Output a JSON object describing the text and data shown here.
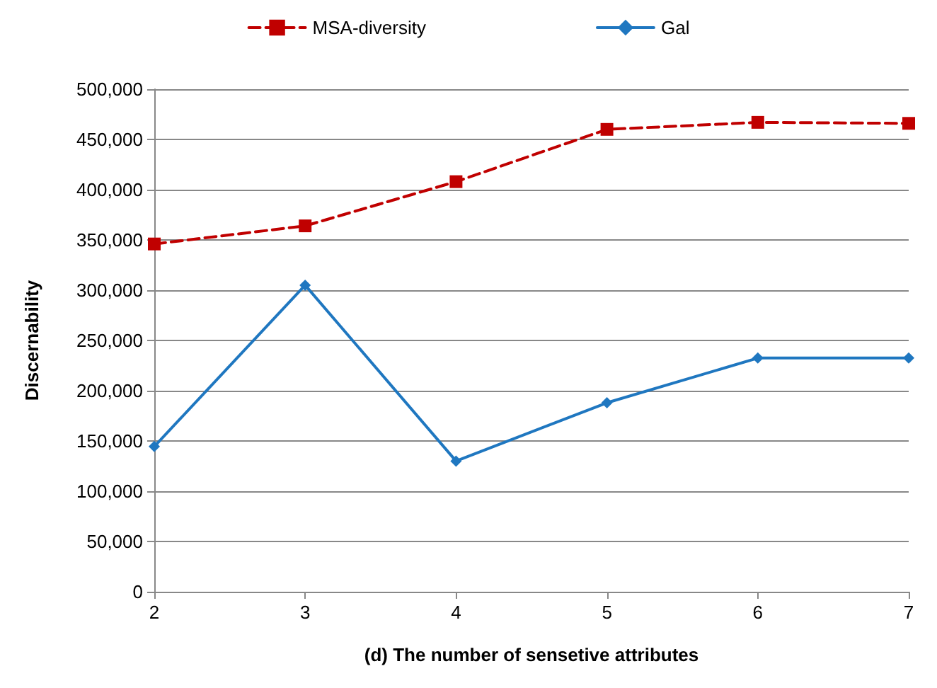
{
  "chart_data": {
    "type": "line",
    "xlabel": "(d) The number of sensetive attributes",
    "ylabel": "Discernability",
    "x": [
      2,
      3,
      4,
      5,
      6,
      7
    ],
    "series": [
      {
        "name": "MSA-diversity",
        "color": "#c00000",
        "marker": "square",
        "line_style": "dashed",
        "values": [
          346000,
          364000,
          408000,
          460000,
          467000,
          466000
        ]
      },
      {
        "name": "Gal",
        "color": "#1f77c0",
        "marker": "diamond",
        "line_style": "solid",
        "values": [
          144500,
          305000,
          130000,
          188000,
          232500,
          232500
        ]
      }
    ],
    "xlim": [
      2,
      7
    ],
    "xticks": [
      2,
      3,
      4,
      5,
      6,
      7
    ],
    "ylim": [
      0,
      500000
    ],
    "yticks": [
      0,
      {
        "value": 50000,
        "label": "50,000"
      },
      {
        "value": 100000,
        "label": "100,000"
      },
      {
        "value": 150000,
        "label": "150,000"
      },
      {
        "value": 200000,
        "label": "200,000"
      },
      {
        "value": 250000,
        "label": "250,000"
      },
      {
        "value": 300000,
        "label": "300,000"
      },
      {
        "value": 350000,
        "label": "350,000"
      },
      {
        "value": 400000,
        "label": "400,000"
      },
      {
        "value": 450000,
        "label": "450,000"
      },
      {
        "value": 500000,
        "label": "500,000"
      }
    ],
    "grid": "y",
    "legend": "top"
  }
}
